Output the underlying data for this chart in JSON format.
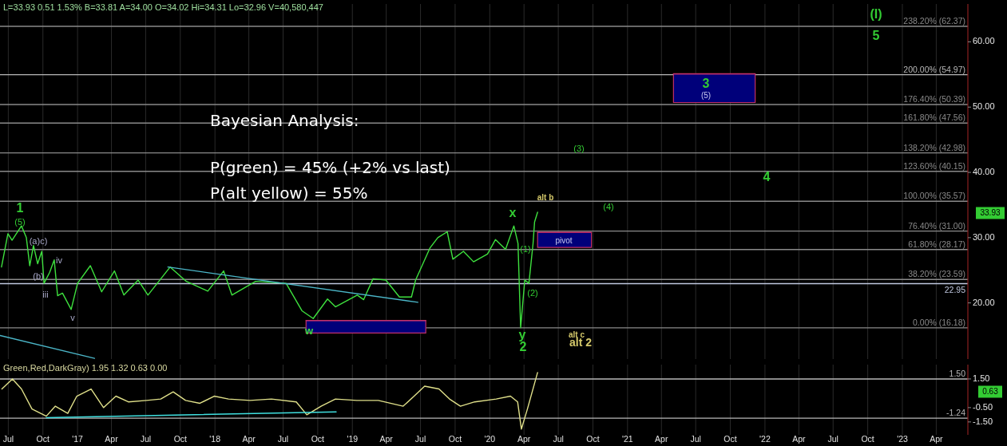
{
  "chart_data": [
    {
      "type": "line",
      "title": "L=33.93 0.51 1.53% B=33.81 A=34.00 O=34.02 Hi=34.31 Lo=32.96 V=40,580,447",
      "xlim": [
        "2016-06-09",
        "2023-06-24"
      ],
      "ylim": [
        11.4,
        65.8
      ],
      "xticks": [
        "2016-07-01",
        "2016-10-01",
        "2017-01-01",
        "2017-04-01",
        "2017-07-01",
        "2017-10-01",
        "2018-01-01",
        "2018-04-01",
        "2018-07-01",
        "2018-10-01",
        "2019-01-01",
        "2019-04-01",
        "2019-07-01",
        "2019-10-01",
        "2020-01-01",
        "2020-04-01",
        "2020-07-01",
        "2020-10-01",
        "2021-01-01",
        "2021-04-01",
        "2021-07-01",
        "2021-10-01",
        "2022-01-01",
        "2022-04-01",
        "2022-07-01",
        "2022-10-01",
        "2023-01-01",
        "2023-04-01"
      ],
      "yticks": [
        {
          "value": 20,
          "label": "20.00"
        },
        {
          "value": 30,
          "label": "30.00"
        },
        {
          "value": 40,
          "label": "40.00"
        },
        {
          "value": 50,
          "label": "50.00"
        },
        {
          "value": 60,
          "label": "60.00"
        }
      ],
      "tick_labels": "y",
      "grid": "x",
      "line_style": "solid",
      "series": [
        {
          "color": "#3ee03e",
          "x": [
            "2016-06-13",
            "2016-06-30",
            "2016-07-11",
            "2016-08-05",
            "2016-08-18",
            "2016-08-27",
            "2016-09-06",
            "2016-09-17",
            "2016-09-28",
            "2016-10-04",
            "2016-10-19",
            "2016-10-31",
            "2016-11-09",
            "2016-11-22",
            "2016-12-15",
            "2017-01-01",
            "2017-02-04",
            "2017-03-06",
            "2017-04-09",
            "2017-05-04",
            "2017-06-11",
            "2017-07-07",
            "2017-09-04",
            "2017-10-17",
            "2017-12-13",
            "2018-01-24",
            "2018-02-15",
            "2018-04-19",
            "2018-07-09",
            "2018-08-20",
            "2018-09-19",
            "2018-10-27",
            "2018-11-17",
            "2019-01-14",
            "2019-01-31",
            "2019-02-25",
            "2019-03-31",
            "2019-05-06",
            "2019-06-07",
            "2019-06-18",
            "2019-07-26",
            "2019-08-16",
            "2019-09-10",
            "2019-09-25",
            "2019-10-23",
            "2019-11-19",
            "2019-12-26",
            "2020-01-16",
            "2020-02-12",
            "2020-03-05",
            "2020-03-16",
            "2020-03-23",
            "2020-04-03",
            "2020-04-14",
            "2020-04-25",
            "2020-04-29",
            "2020-05-07"
          ],
          "values": [
            25.5,
            30.6,
            29.6,
            31.8,
            30.0,
            25.7,
            28.8,
            26.0,
            27.9,
            23.0,
            24.7,
            26.6,
            21.1,
            21.5,
            19.0,
            23.0,
            25.7,
            21.7,
            24.9,
            21.2,
            23.5,
            21.2,
            25.5,
            23.3,
            21.8,
            24.9,
            21.2,
            23.3,
            23.0,
            18.8,
            17.6,
            20.6,
            19.4,
            21.2,
            20.5,
            23.7,
            23.5,
            20.9,
            20.9,
            23.5,
            28.4,
            30.0,
            30.9,
            26.7,
            27.9,
            26.3,
            27.5,
            29.7,
            28.2,
            31.8,
            29.1,
            16.2,
            23.5,
            23.0,
            29.1,
            32.4,
            33.9
          ]
        },
        {
          "color": "#4bb6c8",
          "x": [
            "2016-06-09",
            "2017-02-15"
          ],
          "values": [
            15.0,
            11.5
          ]
        },
        {
          "color": "#4bb6c8",
          "x": [
            "2017-08-29",
            "2019-06-24"
          ],
          "values": [
            25.5,
            20.1
          ]
        },
        {
          "color": "#c0306a",
          "x": [
            "2018-08-31",
            "2019-07-15"
          ],
          "values": [
            17.3,
            17.3
          ],
          "lower": [
            15.4,
            15.4
          ],
          "upper": [
            17.3,
            17.3
          ]
        },
        {
          "color": "#c0306a",
          "x": [
            "2020-05-07",
            "2020-09-27"
          ],
          "values": [
            30.8,
            30.8
          ],
          "lower": [
            28.5,
            28.5
          ],
          "upper": [
            30.8,
            30.8
          ]
        },
        {
          "color": "#c0306a",
          "x": [
            "2021-05-03",
            "2021-12-06"
          ],
          "values": [
            55.1,
            55.1
          ],
          "lower": [
            50.7,
            50.7
          ],
          "upper": [
            55.1,
            55.1
          ]
        }
      ],
      "ref_lines": [
        {
          "axis": "y",
          "value": 62.37,
          "label": "238.20% (62.37)",
          "color": "#8a8a8a"
        },
        {
          "axis": "y",
          "value": 54.97,
          "label": "200.00% (54.97)",
          "color": "#b8b8b8"
        },
        {
          "axis": "y",
          "value": 50.39,
          "label": "176.40% (50.39)",
          "color": "#8a8a8a"
        },
        {
          "axis": "y",
          "value": 47.56,
          "label": "161.80% (47.56)",
          "color": "#8a8a8a"
        },
        {
          "axis": "y",
          "value": 42.98,
          "label": "138.20% (42.98)",
          "color": "#8a8a8a"
        },
        {
          "axis": "y",
          "value": 40.15,
          "label": "123.60% (40.15)",
          "color": "#8a8a8a"
        },
        {
          "axis": "y",
          "value": 35.57,
          "label": "100.00% (35.57)",
          "color": "#8a8a8a"
        },
        {
          "axis": "y",
          "value": 31.0,
          "label": "76.40% (31.00)",
          "color": "#8a8a8a"
        },
        {
          "axis": "y",
          "value": 28.17,
          "label": "61.80% (28.17)",
          "color": "#8a8a8a"
        },
        {
          "axis": "y",
          "value": 23.59,
          "label": "38.20% (23.59)",
          "color": "#8a8a8a"
        },
        {
          "axis": "y",
          "value": 22.95,
          "label": "22.95",
          "color": "#c0c8e0"
        },
        {
          "axis": "y",
          "value": 16.18,
          "label": "0.00% (16.18)",
          "color": "#8a8a8a"
        }
      ],
      "annotations": [
        "Bayesian Analysis:",
        "P(green) = 45% (+2% vs last)",
        "P(alt yellow) = 55%",
        "1",
        "(5)",
        "(a)c)",
        "(b)",
        "iii",
        "iv",
        "v",
        "x",
        {
          "text": "w",
          "x": "2018-09-08",
          "y": 15.6
        },
        "2",
        "y",
        "(1)",
        "(2)",
        "alt b",
        "alt c",
        "alt 2",
        "pivot",
        "(3)",
        "(4)",
        "3",
        "(5)",
        "4",
        "(I)",
        "5",
        "33.93"
      ]
    },
    {
      "type": "line",
      "title": "Green,Red,DarkGray) 1.95 1.32 0.63 0.00",
      "xlim": [
        "2016-06-09",
        "2023-06-24"
      ],
      "ylim": [
        -2.4,
        2.5
      ],
      "xticks": [
        {
          "value": "2016-07-01",
          "label": "Jul"
        },
        {
          "value": "2016-10-01",
          "label": "Oct"
        },
        {
          "value": "2017-01-01",
          "label": "'17"
        },
        {
          "value": "2017-04-01",
          "label": "Apr"
        },
        {
          "value": "2017-07-01",
          "label": "Jul"
        },
        {
          "value": "2017-10-01",
          "label": "Oct"
        },
        {
          "value": "2018-01-01",
          "label": "'18"
        },
        {
          "value": "2018-04-01",
          "label": "Apr"
        },
        {
          "value": "2018-07-01",
          "label": "Jul"
        },
        {
          "value": "2018-10-01",
          "label": "Oct"
        },
        {
          "value": "2019-01-01",
          "label": "'19"
        },
        {
          "value": "2019-04-01",
          "label": "Apr"
        },
        {
          "value": "2019-07-01",
          "label": "Jul"
        },
        {
          "value": "2019-10-01",
          "label": "Oct"
        },
        {
          "value": "2020-01-01",
          "label": "'20"
        },
        {
          "value": "2020-04-01",
          "label": "Apr"
        },
        {
          "value": "2020-07-01",
          "label": "Jul"
        },
        {
          "value": "2020-10-01",
          "label": "Oct"
        },
        {
          "value": "2021-01-01",
          "label": "'21"
        },
        {
          "value": "2021-04-01",
          "label": "Apr"
        },
        {
          "value": "2021-07-01",
          "label": "Jul"
        },
        {
          "value": "2021-10-01",
          "label": "Oct"
        },
        {
          "value": "2022-01-01",
          "label": "'22"
        },
        {
          "value": "2022-04-01",
          "label": "Apr"
        },
        {
          "value": "2022-07-01",
          "label": "Jul"
        },
        {
          "value": "2022-10-01",
          "label": "Oct"
        },
        {
          "value": "2023-01-01",
          "label": "'23"
        },
        {
          "value": "2023-04-01",
          "label": "Apr"
        }
      ],
      "yticks": [
        {
          "value": 1.5,
          "label": "1.50"
        },
        {
          "value": -0.5,
          "label": "-0.50"
        },
        {
          "value": -1.5,
          "label": "-1.50"
        }
      ],
      "grid": "x",
      "line_style": "solid",
      "series": [
        {
          "color": "#e0e08a",
          "x": [
            "2016-06-14",
            "2016-07-12",
            "2016-08-05",
            "2016-09-02",
            "2016-10-10",
            "2016-11-03",
            "2016-12-06",
            "2016-12-30",
            "2017-02-06",
            "2017-03-11",
            "2017-04-13",
            "2017-05-16",
            "2017-07-03",
            "2017-08-10",
            "2017-09-12",
            "2017-10-15",
            "2017-11-22",
            "2017-12-30",
            "2018-02-06",
            "2018-04-04",
            "2018-05-31",
            "2018-08-05",
            "2018-09-02",
            "2018-10-10",
            "2018-11-17",
            "2019-01-13",
            "2019-03-11",
            "2019-05-16",
            "2019-06-14",
            "2019-07-12",
            "2019-08-19",
            "2019-09-16",
            "2019-10-15",
            "2019-11-22",
            "2020-01-18",
            "2020-02-25",
            "2020-03-15",
            "2020-03-25",
            "2020-04-10",
            "2020-04-28",
            "2020-05-07"
          ],
          "values": [
            0.8,
            1.5,
            0.8,
            -0.6,
            -1.1,
            -0.4,
            -0.9,
            0.3,
            0.8,
            -0.5,
            0.3,
            -0.1,
            0.0,
            0.1,
            0.6,
            0.0,
            -0.2,
            0.3,
            0.1,
            0.0,
            0.1,
            -0.1,
            -1.0,
            -0.4,
            0.1,
            0.0,
            0.0,
            -0.4,
            0.3,
            1.0,
            0.8,
            0.1,
            -0.4,
            -0.1,
            0.1,
            0.3,
            -0.1,
            -2.0,
            -0.6,
            1.1,
            1.95
          ]
        },
        {
          "color": "#40e0e0",
          "x": [
            "2016-10-10",
            "2018-11-19"
          ],
          "values": [
            -1.2,
            -0.8
          ]
        }
      ],
      "ref_lines": [
        {
          "axis": "y",
          "value": 1.5,
          "label": "1.50",
          "color": "#b8b8b8"
        },
        {
          "axis": "y",
          "value": -1.24,
          "label": "-1.24",
          "color": "#b8b8b8"
        }
      ],
      "annotations": [
        "0.63"
      ]
    }
  ]
}
